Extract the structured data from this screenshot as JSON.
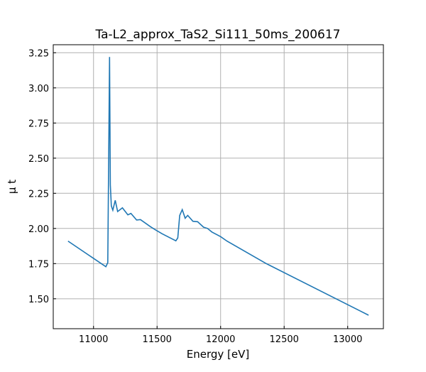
{
  "chart_data": {
    "type": "line",
    "title": "Ta-L2_approx_TaS2_Si111_50ms_200617",
    "xlabel": "Energy [eV]",
    "ylabel": "μ t",
    "xlim": [
      10683,
      13281
    ],
    "ylim": [
      1.287,
      3.307
    ],
    "xticks": [
      11000,
      11500,
      12000,
      12500,
      13000
    ],
    "yticks": [
      1.5,
      1.75,
      2.0,
      2.25,
      2.5,
      2.75,
      3.0,
      3.25
    ],
    "grid": true,
    "line_color": "#1f77b4",
    "series": [
      {
        "x": [
          10799,
          11097,
          11112,
          11126,
          11132,
          11140,
          11152,
          11171,
          11190,
          11227,
          11270,
          11294,
          11339,
          11369,
          11447,
          11484,
          11540,
          11648,
          11663,
          11678,
          11698,
          11721,
          11741,
          11782,
          11819,
          11866,
          11897,
          11931,
          12000,
          12050,
          12359,
          13164
        ],
        "y": [
          1.91,
          1.728,
          1.757,
          3.22,
          2.31,
          2.16,
          2.13,
          2.2,
          2.12,
          2.147,
          2.097,
          2.107,
          2.06,
          2.063,
          2.013,
          1.992,
          1.962,
          1.912,
          1.933,
          2.093,
          2.134,
          2.073,
          2.093,
          2.051,
          2.048,
          2.009,
          2.0,
          1.975,
          1.942,
          1.91,
          1.75,
          1.383
        ]
      }
    ]
  }
}
